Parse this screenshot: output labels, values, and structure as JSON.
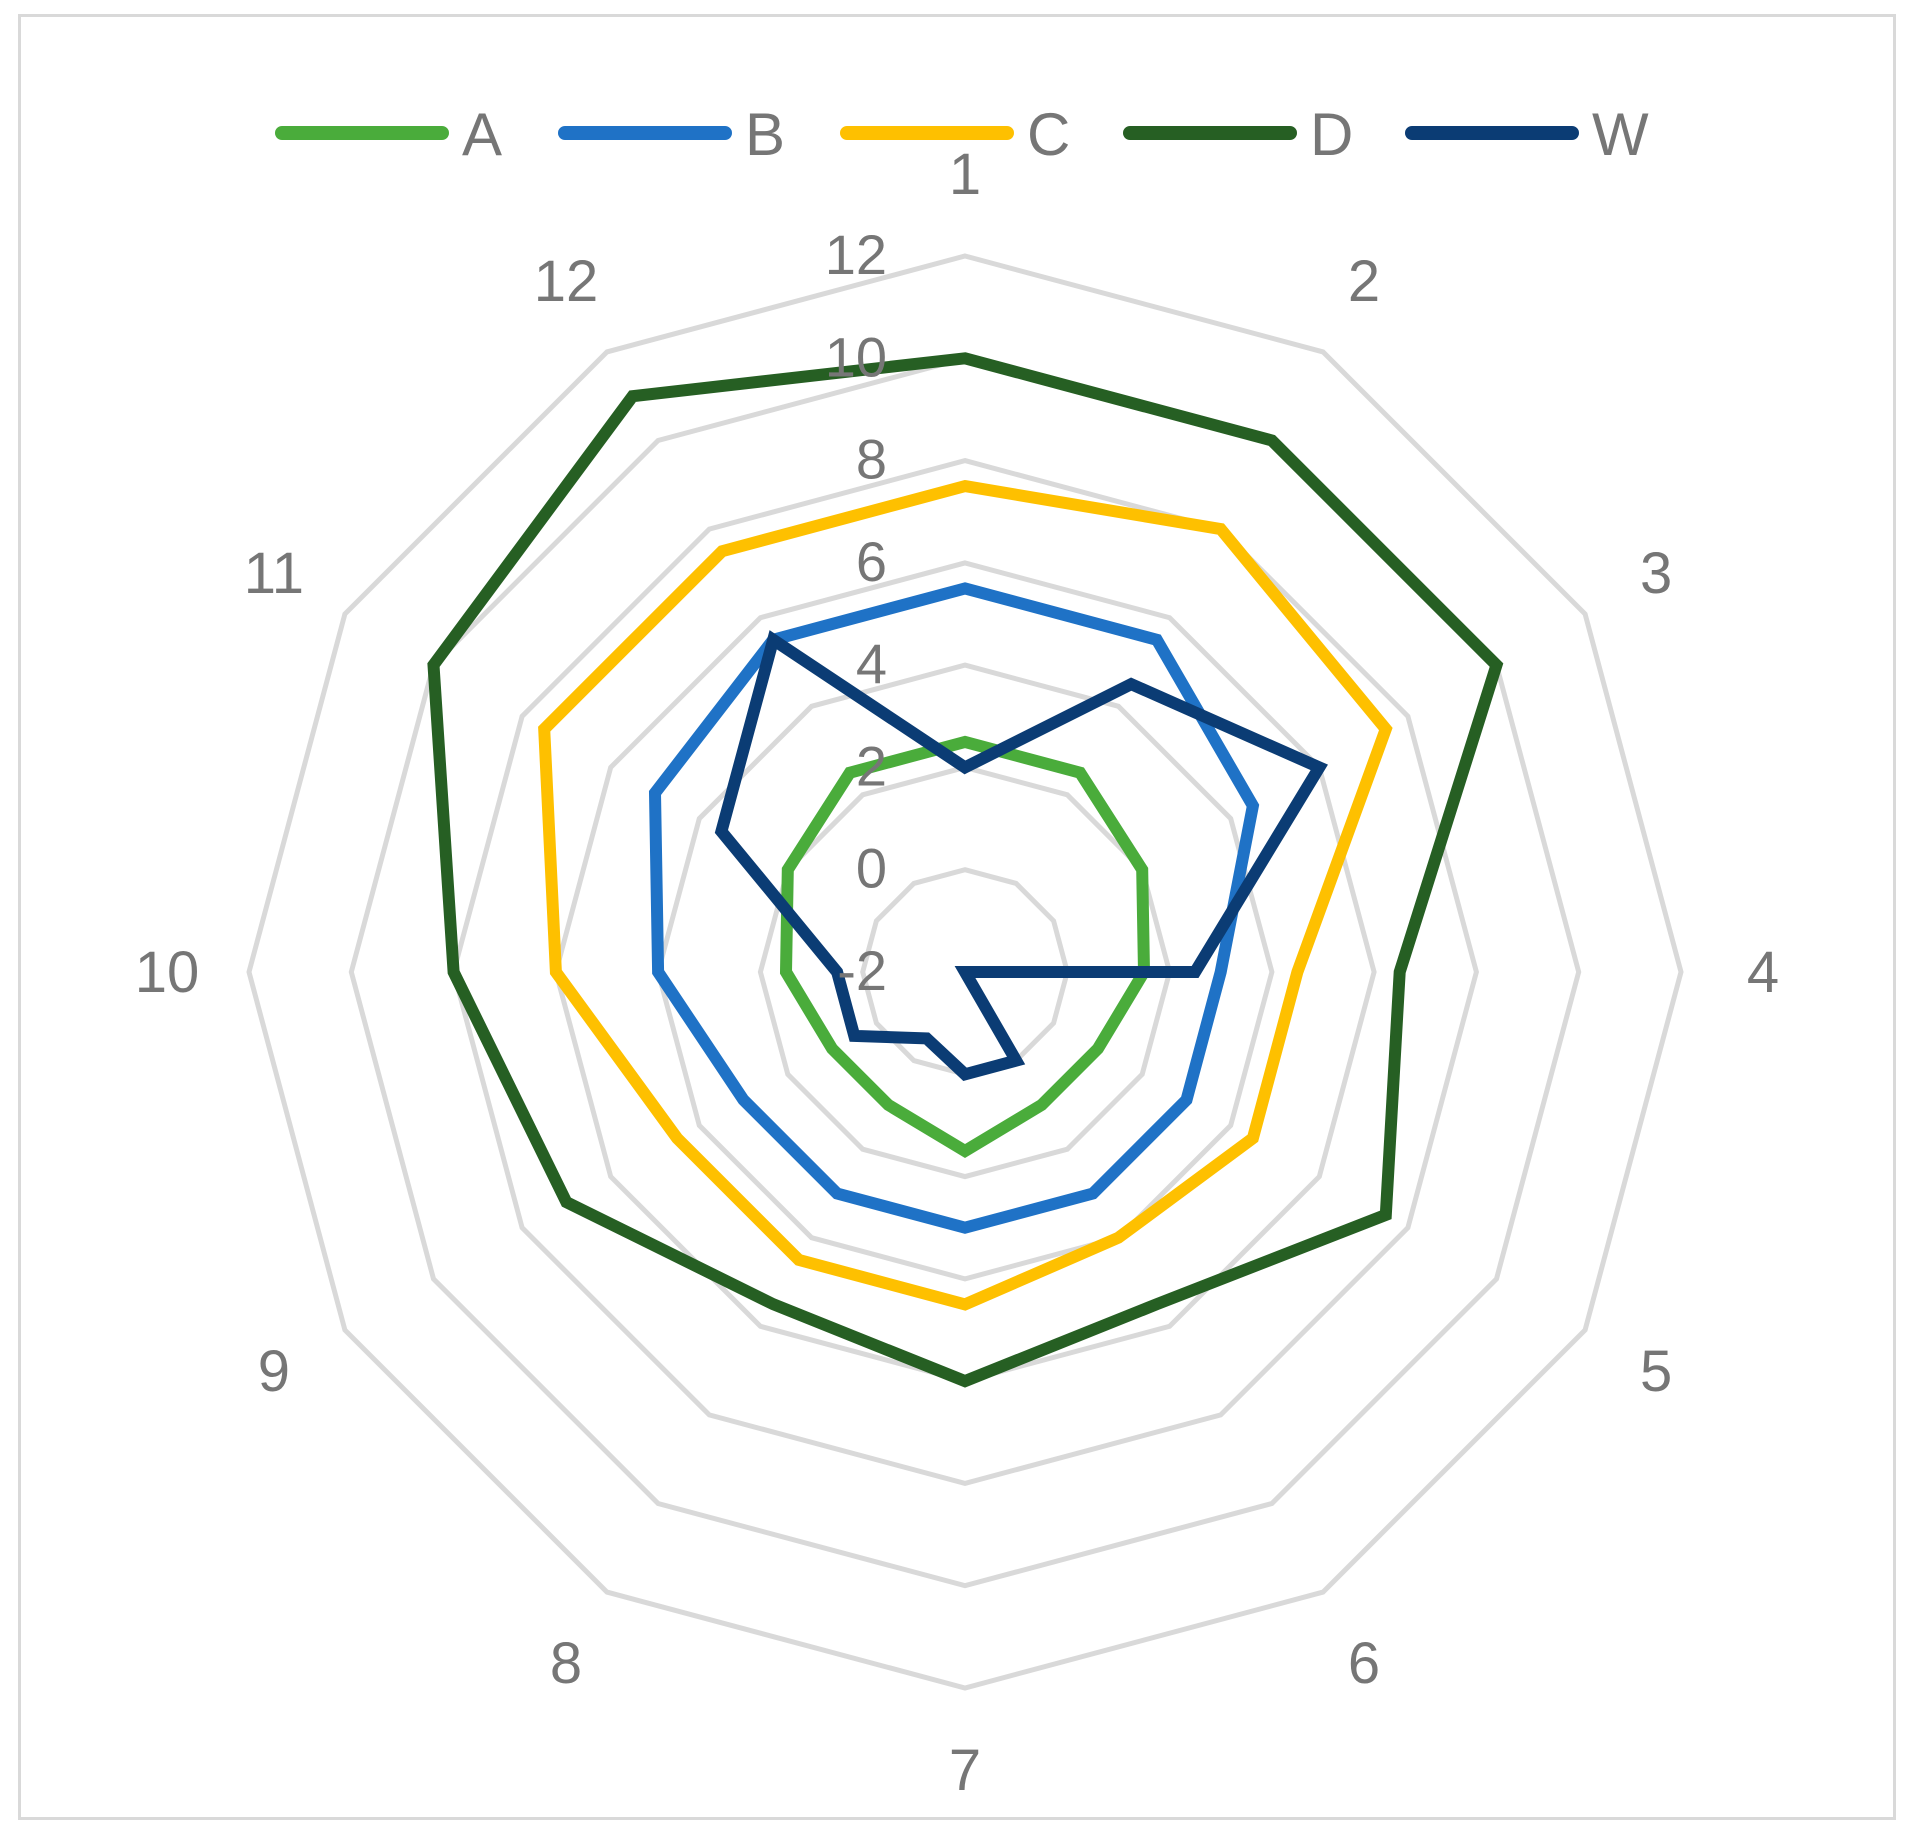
{
  "chart_data": {
    "type": "radar",
    "title": "",
    "categories": [
      "1",
      "2",
      "3",
      "4",
      "5",
      "6",
      "7",
      "8",
      "9",
      "10",
      "11",
      "12"
    ],
    "radial_ticks": [
      "-2",
      "0",
      "2",
      "4",
      "6",
      "8",
      "10",
      "12"
    ],
    "rlim": [
      -2,
      12
    ],
    "grid": true,
    "legend_position": "top",
    "series": [
      {
        "name": "A",
        "color": "#4aac3b",
        "values": [
          2.5,
          2.5,
          2.0,
          1.5,
          1.0,
          1.0,
          1.5,
          1.0,
          1.0,
          1.5,
          2.0,
          2.5
        ]
      },
      {
        "name": "B",
        "color": "#1f72c6",
        "values": [
          5.5,
          5.5,
          4.5,
          3.0,
          3.0,
          3.0,
          3.0,
          3.0,
          3.0,
          4.0,
          5.0,
          5.5
        ]
      },
      {
        "name": "C",
        "color": "#fec000",
        "values": [
          7.5,
          8.0,
          7.5,
          4.5,
          4.5,
          4.0,
          4.5,
          4.5,
          4.5,
          6.0,
          7.5,
          7.5
        ]
      },
      {
        "name": "D",
        "color": "#265f23",
        "values": [
          10.0,
          10.0,
          10.0,
          6.5,
          7.5,
          5.5,
          6.0,
          5.5,
          7.0,
          8.0,
          10.0,
          11.0
        ]
      },
      {
        "name": "W",
        "color": "#0b3c74",
        "values": [
          2.0,
          4.5,
          6.0,
          2.5,
          -2.0,
          0.0,
          0.0,
          -0.5,
          0.5,
          0.5,
          3.5,
          5.5
        ]
      }
    ]
  }
}
